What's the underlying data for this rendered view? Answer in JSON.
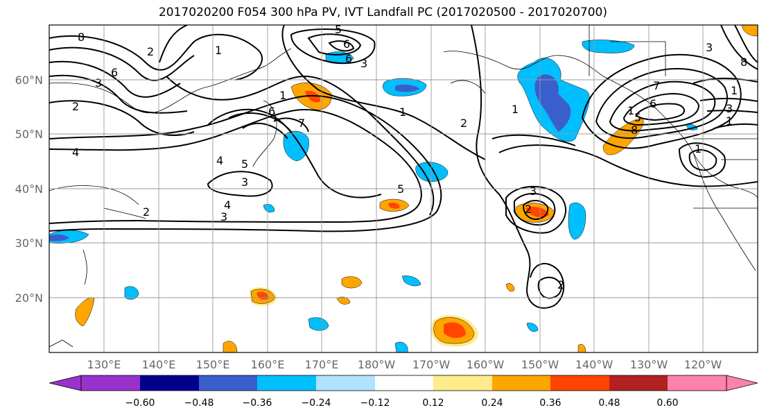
{
  "title": "2017020200 F054 300 hPa PV, IVT Landfall PC (2017020500 - 2017020700)",
  "lat_labels": [
    "60°N",
    "50°N",
    "40°N",
    "30°N",
    "20°N"
  ],
  "lon_labels": [
    "130°E",
    "140°E",
    "150°E",
    "160°E",
    "170°E",
    "180°W",
    "170°W",
    "160°W",
    "150°W",
    "140°W",
    "130°W",
    "120°W"
  ],
  "colorbar": {
    "ticks": [
      "−0.60",
      "−0.48",
      "−0.36",
      "−0.24",
      "−0.12",
      "0.12",
      "0.24",
      "0.36",
      "0.48",
      "0.60"
    ],
    "colors": [
      "#9932cc",
      "#00008b",
      "#3a5fcd",
      "#00bfff",
      "#b0e2ff",
      "#ffffff",
      "#ffec8b",
      "#ffa500",
      "#ff4500",
      "#b22222",
      "#ff82ab"
    ]
  },
  "contour_labels": [
    "8",
    "6",
    "3",
    "2",
    "4",
    "1",
    "6",
    "5",
    "6",
    "3",
    "1",
    "6",
    "7",
    "4",
    "5",
    "3",
    "4",
    "2",
    "3",
    "5",
    "1",
    "2",
    "1",
    "3",
    "2",
    "2",
    "7",
    "6",
    "1",
    "5",
    "8",
    "1",
    "3",
    "1",
    "8",
    "1",
    "3",
    "2"
  ]
}
